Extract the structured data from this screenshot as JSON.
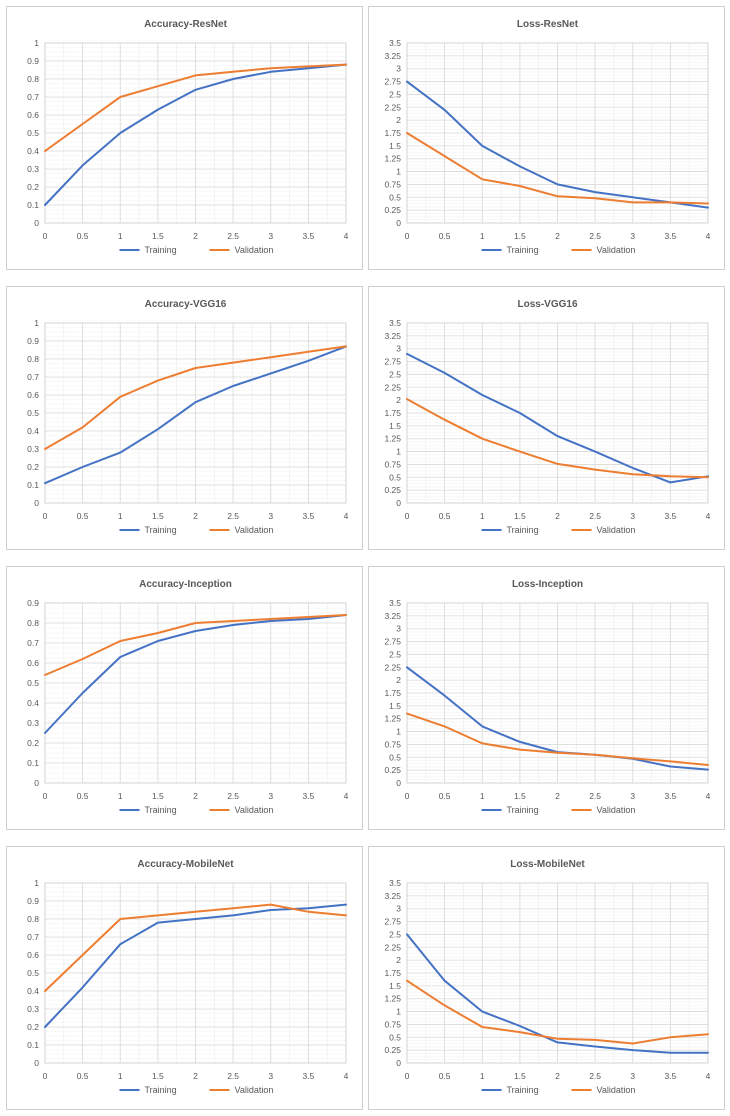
{
  "colors": {
    "training": "#4472c4",
    "validation": "#ed7d31",
    "grid": "#d9d9d9"
  },
  "chart_data": [
    {
      "type": "line",
      "title": "Accuracy-ResNet",
      "x": [
        0,
        0.5,
        1,
        1.5,
        2,
        2.5,
        3,
        3.5,
        4
      ],
      "x_tick_labels": [
        "0",
        "0.5",
        "1",
        "1.5",
        "2",
        "2.5",
        "3",
        "3.5",
        "4"
      ],
      "ylim": [
        0,
        1
      ],
      "y_tick_labels": [
        "0",
        "0.1",
        "0.2",
        "0.3",
        "0.4",
        "0.5",
        "0.6",
        "0.7",
        "0.8",
        "0.9",
        "1"
      ],
      "series": [
        {
          "name": "Training",
          "values": [
            0.1,
            0.32,
            0.5,
            0.63,
            0.74,
            0.8,
            0.84,
            0.86,
            0.88
          ]
        },
        {
          "name": "Validation",
          "values": [
            0.4,
            0.55,
            0.7,
            0.76,
            0.82,
            0.84,
            0.86,
            0.87,
            0.88
          ]
        }
      ]
    },
    {
      "type": "line",
      "title": "Loss-ResNet",
      "x": [
        0,
        0.5,
        1,
        1.5,
        2,
        2.5,
        3,
        3.5,
        4
      ],
      "x_tick_labels": [
        "0",
        "0.5",
        "1",
        "1.5",
        "2",
        "2.5",
        "3",
        "3.5",
        "4"
      ],
      "ylim": [
        0,
        3.5
      ],
      "y_tick_labels": [
        "0",
        "0.25",
        "0.5",
        "0.75",
        "1",
        "1.25",
        "1.5",
        "1.75",
        "2",
        "2.25",
        "2.5",
        "2.75",
        "3",
        "3.25",
        "3.5"
      ],
      "series": [
        {
          "name": "Training",
          "values": [
            2.75,
            2.2,
            1.5,
            1.1,
            0.75,
            0.6,
            0.5,
            0.4,
            0.3
          ]
        },
        {
          "name": "Validation",
          "values": [
            1.75,
            1.3,
            0.85,
            0.72,
            0.52,
            0.48,
            0.4,
            0.4,
            0.38
          ]
        }
      ]
    },
    {
      "type": "line",
      "title": "Accuracy-VGG16",
      "x": [
        0,
        0.5,
        1,
        1.5,
        2,
        2.5,
        3,
        3.5,
        4
      ],
      "x_tick_labels": [
        "0",
        "0.5",
        "1",
        "1.5",
        "2",
        "2.5",
        "3",
        "3.5",
        "4"
      ],
      "ylim": [
        0,
        1
      ],
      "y_tick_labels": [
        "0",
        "0.1",
        "0.2",
        "0.3",
        "0.4",
        "0.5",
        "0.6",
        "0.7",
        "0.8",
        "0.9",
        "1"
      ],
      "series": [
        {
          "name": "Training",
          "values": [
            0.11,
            0.2,
            0.28,
            0.41,
            0.56,
            0.65,
            0.72,
            0.79,
            0.87
          ]
        },
        {
          "name": "Validation",
          "values": [
            0.3,
            0.42,
            0.59,
            0.68,
            0.75,
            0.78,
            0.81,
            0.84,
            0.87
          ]
        }
      ]
    },
    {
      "type": "line",
      "title": "Loss-VGG16",
      "x": [
        0,
        0.5,
        1,
        1.5,
        2,
        2.5,
        3,
        3.5,
        4
      ],
      "x_tick_labels": [
        "0",
        "0.5",
        "1",
        "1.5",
        "2",
        "2.5",
        "3",
        "3.5",
        "4"
      ],
      "ylim": [
        0,
        3.5
      ],
      "y_tick_labels": [
        "0",
        "0.25",
        "0.5",
        "0.75",
        "1",
        "1.25",
        "1.5",
        "1.75",
        "2",
        "2.25",
        "2.5",
        "2.75",
        "3",
        "3.25",
        "3.5"
      ],
      "series": [
        {
          "name": "Training",
          "values": [
            2.9,
            2.53,
            2.1,
            1.75,
            1.3,
            1.0,
            0.68,
            0.4,
            0.52
          ]
        },
        {
          "name": "Validation",
          "values": [
            2.02,
            1.62,
            1.25,
            1.0,
            0.76,
            0.65,
            0.56,
            0.52,
            0.5
          ]
        }
      ]
    },
    {
      "type": "line",
      "title": "Accuracy-Inception",
      "x": [
        0,
        0.5,
        1,
        1.5,
        2,
        2.5,
        3,
        3.5,
        4
      ],
      "x_tick_labels": [
        "0",
        "0.5",
        "1",
        "1.5",
        "2",
        "2.5",
        "3",
        "3.5",
        "4"
      ],
      "ylim": [
        0,
        0.9
      ],
      "y_tick_labels": [
        "0",
        "0.1",
        "0.2",
        "0.3",
        "0.4",
        "0.5",
        "0.6",
        "0.7",
        "0.8",
        "0.9"
      ],
      "series": [
        {
          "name": "Training",
          "values": [
            0.25,
            0.45,
            0.63,
            0.71,
            0.76,
            0.79,
            0.81,
            0.82,
            0.84
          ]
        },
        {
          "name": "Validation",
          "values": [
            0.54,
            0.62,
            0.71,
            0.75,
            0.8,
            0.81,
            0.82,
            0.83,
            0.84
          ]
        }
      ]
    },
    {
      "type": "line",
      "title": "Loss-Inception",
      "x": [
        0,
        0.5,
        1,
        1.5,
        2,
        2.5,
        3,
        3.5,
        4
      ],
      "x_tick_labels": [
        "0",
        "0.5",
        "1",
        "1.5",
        "2",
        "2.5",
        "3",
        "3.5",
        "4"
      ],
      "ylim": [
        0,
        3.5
      ],
      "y_tick_labels": [
        "0",
        "0.25",
        "0.5",
        "0.75",
        "1",
        "1.25",
        "1.5",
        "1.75",
        "2",
        "2.25",
        "2.5",
        "2.75",
        "3",
        "3.25",
        "3.5"
      ],
      "series": [
        {
          "name": "Training",
          "values": [
            2.25,
            1.7,
            1.1,
            0.8,
            0.6,
            0.55,
            0.47,
            0.32,
            0.26
          ]
        },
        {
          "name": "Validation",
          "values": [
            1.35,
            1.1,
            0.77,
            0.65,
            0.59,
            0.55,
            0.48,
            0.42,
            0.35
          ]
        }
      ]
    },
    {
      "type": "line",
      "title": "Accuracy-MobileNet",
      "x": [
        0,
        0.5,
        1,
        1.5,
        2,
        2.5,
        3,
        3.5,
        4
      ],
      "x_tick_labels": [
        "0",
        "0.5",
        "1",
        "1.5",
        "2",
        "2.5",
        "3",
        "3.5",
        "4"
      ],
      "ylim": [
        0,
        1
      ],
      "y_tick_labels": [
        "0",
        "0.1",
        "0.2",
        "0.3",
        "0.4",
        "0.5",
        "0.6",
        "0.7",
        "0.8",
        "0.9",
        "1"
      ],
      "series": [
        {
          "name": "Training",
          "values": [
            0.2,
            0.42,
            0.66,
            0.78,
            0.8,
            0.82,
            0.85,
            0.86,
            0.88
          ]
        },
        {
          "name": "Validation",
          "values": [
            0.4,
            0.6,
            0.8,
            0.82,
            0.84,
            0.86,
            0.88,
            0.84,
            0.82
          ]
        }
      ]
    },
    {
      "type": "line",
      "title": "Loss-MobileNet",
      "x": [
        0,
        0.5,
        1,
        1.5,
        2,
        2.5,
        3,
        3.5,
        4
      ],
      "x_tick_labels": [
        "0",
        "0.5",
        "1",
        "1.5",
        "2",
        "2.5",
        "3",
        "3.5",
        "4"
      ],
      "ylim": [
        0,
        3.5
      ],
      "y_tick_labels": [
        "0",
        "0.25",
        "0.5",
        "0.75",
        "1",
        "1.25",
        "1.5",
        "1.75",
        "2",
        "2.25",
        "2.5",
        "2.75",
        "3",
        "3.25",
        "3.5"
      ],
      "series": [
        {
          "name": "Training",
          "values": [
            2.5,
            1.6,
            1.0,
            0.72,
            0.4,
            0.32,
            0.25,
            0.2,
            0.2
          ]
        },
        {
          "name": "Validation",
          "values": [
            1.6,
            1.12,
            0.7,
            0.6,
            0.47,
            0.45,
            0.38,
            0.5,
            0.56
          ]
        }
      ]
    }
  ]
}
